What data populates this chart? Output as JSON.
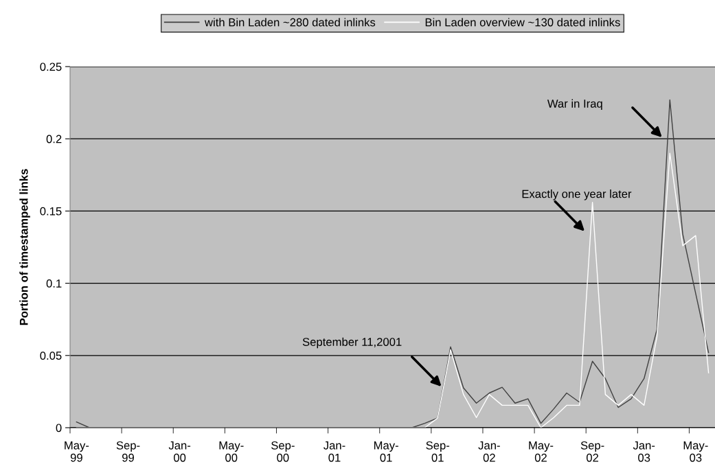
{
  "chart_data": {
    "type": "line",
    "ylabel": "Portion of timestamped links",
    "categories": [
      "May-99",
      null,
      null,
      null,
      "Sep-99",
      null,
      null,
      null,
      "Jan-00",
      null,
      null,
      null,
      "May-00",
      null,
      null,
      null,
      "Sep-00",
      null,
      null,
      null,
      "Jan-01",
      null,
      null,
      null,
      "May-01",
      null,
      null,
      null,
      "Sep-01",
      null,
      null,
      null,
      "Jan-02",
      null,
      null,
      null,
      "May-02",
      null,
      null,
      null,
      "Sep-02",
      null,
      null,
      null,
      "Jan-03",
      null,
      null,
      null,
      "May-03",
      null
    ],
    "series": [
      {
        "name": "with Bin Laden ~280 dated inlinks",
        "color": "#404040",
        "values": [
          0.004,
          0,
          0,
          0,
          0,
          0,
          0,
          0,
          0,
          0,
          0,
          0,
          0,
          0,
          0,
          0,
          0,
          0,
          0,
          0,
          0,
          0,
          0,
          0,
          0,
          0,
          0,
          0.003,
          0.0067,
          0.056,
          0.0276,
          0.017,
          0.024,
          0.028,
          0.017,
          0.02,
          0.003,
          0.013,
          0.024,
          0.0176,
          0.046,
          0.034,
          0.014,
          0.02,
          0.034,
          0.068,
          0.227,
          0.134,
          0.093,
          0.052
        ]
      },
      {
        "name": "Bin Laden overview ~130 dated inlinks",
        "color": "#ffffff",
        "values": [
          0,
          0,
          0,
          0,
          0,
          0,
          0,
          0,
          0,
          0,
          0,
          0,
          0,
          0,
          0,
          0,
          0,
          0,
          0,
          0,
          0,
          0,
          0,
          0,
          0,
          0,
          0,
          0,
          0.0067,
          0.054,
          0.023,
          0.007,
          0.023,
          0.0155,
          0.0155,
          0.0155,
          0,
          0.007,
          0.0155,
          0.0155,
          0.156,
          0.023,
          0.0155,
          0.023,
          0.0155,
          0.063,
          0.19,
          0.126,
          0.133,
          0.038
        ]
      }
    ],
    "ylim": [
      0,
      0.25
    ],
    "yticks": [
      0,
      0.05,
      0.1,
      0.15,
      0.2,
      0.25
    ],
    "grid": "y",
    "legend": "top",
    "annotations": [
      "September 11,2001",
      "Exactly one year later",
      "War in Iraq"
    ]
  }
}
